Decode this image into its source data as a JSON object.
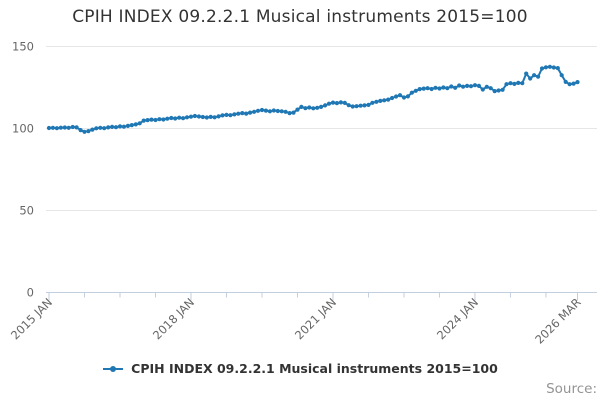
{
  "page": {
    "title": "CPIH INDEX 09.2.2.1 Musical instruments 2015=100",
    "source_label": "Source:"
  },
  "legend": {
    "label": "CPIH INDEX 09.2.2.1 Musical instruments 2015=100"
  },
  "colors": {
    "series_blue": "#1f77b4",
    "axis_line": "#c3cede",
    "gridline": "#e6e6e6",
    "tick_label": "#666666",
    "title_text": "#333333",
    "source_text": "#949494"
  },
  "chart_data": {
    "type": "line",
    "title": "CPIH INDEX 09.2.2.1 Musical instruments 2015=100",
    "xlabel": "",
    "ylabel": "",
    "ylim": [
      0,
      150
    ],
    "y_ticks": [
      0,
      50,
      100,
      150
    ],
    "grid": true,
    "legend_position": "bottom",
    "x_monthly_start": "2015-01",
    "x_monthly_end": "2026-03",
    "x_tick_labels": [
      "2015 JAN",
      "2018 JAN",
      "2021 JAN",
      "2024 JAN",
      "2026 MAR"
    ],
    "x_tick_label_month_offsets": [
      0,
      36,
      72,
      108,
      134
    ],
    "minor_x_tick_every_months": 9,
    "series": [
      {
        "name": "CPIH INDEX 09.2.2.1 Musical instruments 2015=100",
        "color": "#1f77b4",
        "values": [
          100.3,
          100.4,
          100.2,
          100.5,
          100.6,
          100.4,
          100.9,
          100.7,
          99.0,
          98.0,
          98.4,
          99.3,
          100.1,
          100.4,
          100.2,
          100.7,
          101.0,
          100.8,
          101.3,
          101.1,
          101.6,
          102.1,
          102.5,
          103.2,
          104.8,
          105.1,
          105.4,
          105.2,
          105.7,
          105.5,
          106.0,
          106.4,
          106.1,
          106.6,
          106.3,
          106.8,
          107.2,
          107.6,
          107.3,
          107.0,
          106.7,
          107.1,
          106.8,
          107.4,
          108.0,
          108.3,
          108.1,
          108.6,
          109.0,
          109.4,
          109.1,
          109.7,
          110.2,
          110.8,
          111.3,
          110.9,
          110.5,
          111.0,
          110.7,
          110.5,
          110.2,
          109.4,
          109.7,
          111.5,
          113.2,
          112.4,
          112.8,
          112.3,
          112.6,
          113.2,
          114.1,
          115.1,
          115.8,
          115.5,
          115.9,
          115.6,
          114.2,
          113.4,
          113.6,
          113.9,
          114.1,
          114.4,
          115.7,
          116.3,
          116.8,
          117.2,
          117.6,
          118.6,
          119.5,
          120.3,
          118.9,
          119.6,
          121.8,
          123.0,
          124.0,
          124.3,
          124.6,
          124.1,
          124.8,
          124.4,
          125.0,
          124.6,
          125.6,
          124.8,
          126.2,
          125.5,
          126.0,
          125.8,
          126.4,
          126.0,
          123.8,
          125.4,
          124.6,
          122.8,
          123.2,
          123.6,
          127.0,
          127.6,
          127.2,
          127.8,
          127.6,
          133.5,
          130.5,
          132.5,
          131.6,
          136.6,
          137.3,
          137.6,
          137.2,
          136.8,
          132.5,
          128.4,
          127.0,
          127.4,
          128.3
        ]
      }
    ]
  }
}
